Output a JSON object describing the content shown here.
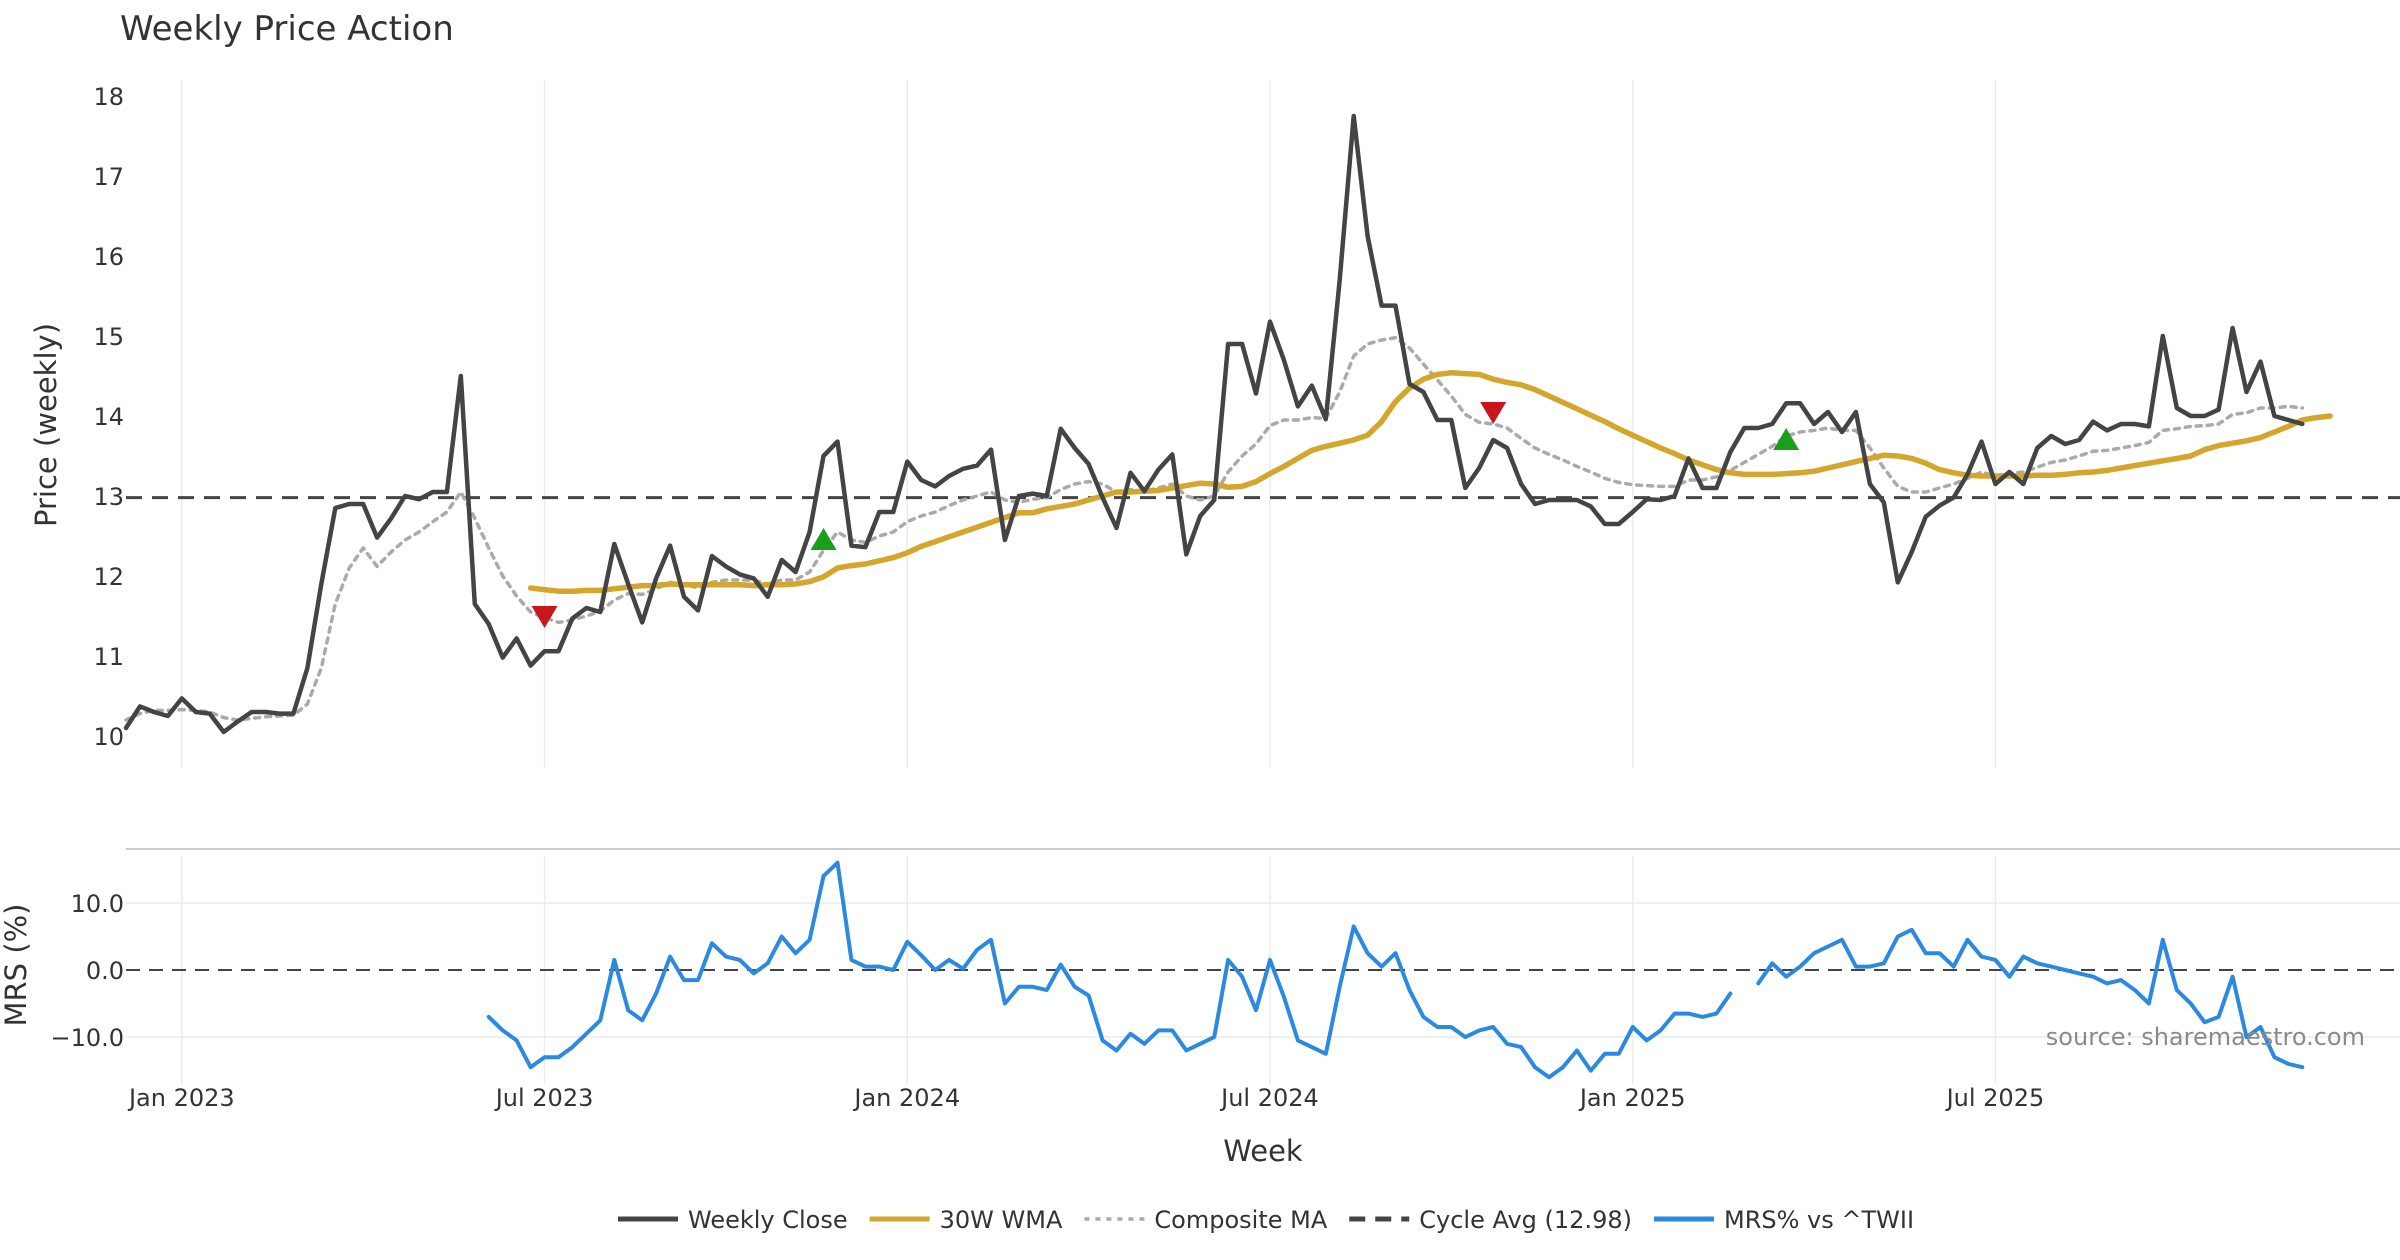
{
  "chart_data": {
    "type": "line",
    "title": "Weekly Price Action",
    "xlabel": "Week",
    "source_text": "source: sharemaestro.com",
    "x_ticks": [
      "Jan 2023",
      "Jul 2023",
      "Jan 2024",
      "Jul 2024",
      "Jan 2025",
      "Jul 2025"
    ],
    "x_tick_weeks": [
      4,
      30,
      56,
      82,
      108,
      134
    ],
    "price_panel": {
      "ylabel": "Price (weekly)",
      "ylim": [
        9.6,
        18.2
      ],
      "y_ticks": [
        10,
        11,
        12,
        13,
        14,
        15,
        16,
        17,
        18
      ]
    },
    "mrs_panel": {
      "ylabel": "MRS (%)",
      "ylim": [
        -17,
        17
      ],
      "y_ticks": [
        10,
        0,
        -10
      ],
      "y_tick_labels": [
        "10.0",
        "0.0",
        "−10.0"
      ]
    },
    "cycle_average": 12.98,
    "series": [
      {
        "name": "Weekly Close",
        "color": "#444444",
        "style": "solid",
        "panel": "price",
        "start_week": 0,
        "values": [
          10.1,
          10.37,
          10.3,
          10.25,
          10.47,
          10.3,
          10.28,
          10.05,
          10.18,
          10.3,
          10.3,
          10.28,
          10.28,
          10.85,
          11.9,
          12.85,
          12.9,
          12.9,
          12.48,
          12.72,
          13.0,
          12.96,
          13.05,
          13.05,
          14.5,
          11.65,
          11.4,
          10.98,
          11.22,
          10.88,
          11.06,
          11.06,
          11.47,
          11.6,
          11.55,
          12.4,
          11.9,
          11.42,
          11.97,
          12.38,
          11.74,
          11.57,
          12.25,
          12.12,
          12.02,
          11.97,
          11.74,
          12.2,
          12.05,
          12.55,
          13.5,
          13.68,
          12.38,
          12.36,
          12.8,
          12.8,
          13.43,
          13.2,
          13.12,
          13.25,
          13.34,
          13.38,
          13.58,
          12.45,
          13.0,
          13.03,
          13.0,
          13.84,
          13.6,
          13.4,
          12.98,
          12.6,
          13.29,
          13.06,
          13.33,
          13.52,
          12.27,
          12.75,
          12.95,
          14.9,
          14.9,
          14.28,
          15.18,
          14.7,
          14.12,
          14.38,
          13.96,
          15.7,
          17.75,
          16.25,
          15.38,
          15.38,
          14.4,
          14.3,
          13.95,
          13.95,
          13.1,
          13.35,
          13.7,
          13.6,
          13.15,
          12.9,
          12.95,
          12.95,
          12.95,
          12.87,
          12.65,
          12.65,
          12.8,
          12.96,
          12.95,
          13.0,
          13.47,
          13.1,
          13.1,
          13.55,
          13.85,
          13.85,
          13.9,
          14.16,
          14.16,
          13.9,
          14.05,
          13.8,
          14.05,
          13.15,
          12.92,
          11.92,
          12.3,
          12.74,
          12.88,
          12.98,
          13.27,
          13.68,
          13.15,
          13.3,
          13.15,
          13.6,
          13.75,
          13.65,
          13.7,
          13.93,
          13.82,
          13.9,
          13.9,
          13.87,
          15.0,
          14.1,
          14.0,
          14.0,
          14.08,
          15.1,
          14.3,
          14.68,
          14.0,
          13.95,
          13.9
        ]
      },
      {
        "name": "30W WMA",
        "color": "#d4a72c",
        "style": "solid",
        "panel": "price",
        "start_week": 29,
        "values": [
          11.85,
          11.83,
          11.81,
          11.81,
          11.82,
          11.82,
          11.84,
          11.86,
          11.88,
          11.88,
          11.9,
          11.89,
          11.89,
          11.89,
          11.89,
          11.89,
          11.88,
          11.89,
          11.89,
          11.9,
          11.93,
          11.99,
          12.1,
          12.13,
          12.15,
          12.19,
          12.23,
          12.29,
          12.37,
          12.43,
          12.49,
          12.55,
          12.61,
          12.67,
          12.73,
          12.79,
          12.79,
          12.84,
          12.87,
          12.9,
          12.95,
          13.0,
          13.05,
          13.05,
          13.06,
          13.07,
          13.1,
          13.13,
          13.16,
          13.15,
          13.11,
          13.12,
          13.18,
          13.28,
          13.37,
          13.47,
          13.57,
          13.62,
          13.66,
          13.7,
          13.76,
          13.93,
          14.18,
          14.35,
          14.46,
          14.52,
          14.54,
          14.53,
          14.52,
          14.46,
          14.42,
          14.39,
          14.33,
          14.25,
          14.17,
          14.09,
          14.01,
          13.93,
          13.84,
          13.76,
          13.68,
          13.6,
          13.53,
          13.45,
          13.39,
          13.33,
          13.29,
          13.27,
          13.27,
          13.27,
          13.28,
          13.29,
          13.31,
          13.35,
          13.39,
          13.43,
          13.47,
          13.51,
          13.5,
          13.47,
          13.41,
          13.33,
          13.29,
          13.26,
          13.25,
          13.25,
          13.25,
          13.25,
          13.26,
          13.26,
          13.27,
          13.29,
          13.3,
          13.32,
          13.35,
          13.38,
          13.41,
          13.44,
          13.47,
          13.5,
          13.58,
          13.63,
          13.66,
          13.69,
          13.73,
          13.8,
          13.87,
          13.95,
          13.98,
          14.0
        ]
      },
      {
        "name": "Composite MA",
        "color": "#aaaaaa",
        "style": "dotted",
        "panel": "price",
        "start_week": 0,
        "values": [
          10.2,
          10.28,
          10.32,
          10.32,
          10.33,
          10.32,
          10.3,
          10.23,
          10.2,
          10.22,
          10.24,
          10.25,
          10.26,
          10.4,
          10.85,
          11.65,
          12.1,
          12.35,
          12.12,
          12.3,
          12.45,
          12.55,
          12.68,
          12.8,
          13.05,
          12.72,
          12.35,
          12.0,
          11.75,
          11.55,
          11.48,
          11.42,
          11.45,
          11.5,
          11.56,
          11.7,
          11.78,
          11.77,
          11.84,
          11.92,
          11.9,
          11.85,
          11.92,
          11.95,
          11.95,
          11.95,
          11.9,
          11.95,
          11.95,
          12.05,
          12.32,
          12.55,
          12.45,
          12.42,
          12.5,
          12.55,
          12.68,
          12.75,
          12.8,
          12.88,
          12.95,
          13.0,
          13.05,
          12.95,
          12.92,
          12.96,
          12.98,
          13.08,
          13.15,
          13.18,
          13.15,
          13.05,
          13.08,
          13.06,
          13.1,
          13.15,
          13.0,
          12.95,
          13.0,
          13.3,
          13.5,
          13.65,
          13.88,
          13.95,
          13.95,
          13.98,
          13.97,
          14.3,
          14.75,
          14.9,
          14.95,
          14.98,
          14.85,
          14.65,
          14.45,
          14.25,
          14.02,
          13.92,
          13.9,
          13.85,
          13.72,
          13.6,
          13.52,
          13.45,
          13.37,
          13.3,
          13.22,
          13.17,
          13.14,
          13.13,
          13.12,
          13.12,
          13.2,
          13.2,
          13.24,
          13.32,
          13.42,
          13.52,
          13.62,
          13.75,
          13.8,
          13.82,
          13.85,
          13.82,
          13.82,
          13.6,
          13.35,
          13.12,
          13.05,
          13.05,
          13.1,
          13.15,
          13.22,
          13.3,
          13.25,
          13.28,
          13.3,
          13.36,
          13.42,
          13.45,
          13.5,
          13.56,
          13.57,
          13.6,
          13.63,
          13.67,
          13.82,
          13.84,
          13.87,
          13.88,
          13.9,
          14.02,
          14.04,
          14.1,
          14.1,
          14.12,
          14.1
        ]
      },
      {
        "name": "Cycle Avg (12.98)",
        "color": "#444444",
        "style": "dashed",
        "panel": "price",
        "constant": 12.98
      },
      {
        "name": "MRS% vs ^TWII",
        "color": "#2b8ae0",
        "style": "solid",
        "panel": "mrs",
        "segments": [
          {
            "start_week": 26,
            "values": [
              -7,
              -9,
              -10.5,
              -14.5,
              -13,
              -13,
              -11.5,
              -9.5,
              -7.5,
              1.5,
              -6,
              -7.5,
              -3.5,
              2,
              -1.5,
              -1.5,
              4,
              2,
              1.5,
              -0.5,
              1,
              5,
              2.5,
              4.5,
              14,
              16,
              1.5,
              0.5,
              0.5,
              0,
              4.2,
              2.2,
              0,
              1.5,
              0.2,
              3,
              4.5,
              -5,
              -2.5,
              -2.5,
              -3,
              0.8,
              -2.5,
              -3.8,
              -10.5,
              -12,
              -9.5,
              -11,
              -9,
              -9,
              -12,
              -11,
              -10,
              1.5,
              -1,
              -6,
              1.5,
              -4,
              -10.5,
              -11.5,
              -12.5,
              -2.5,
              6.5,
              2.5,
              0.5,
              2.5,
              -3,
              -7,
              -8.5,
              -8.5,
              -10,
              -9,
              -8.5,
              -11,
              -11.5,
              -14.5,
              -16,
              -14.5,
              -12,
              -15,
              -12.5,
              -12.5,
              -8.5,
              -10.5,
              -9,
              -6.5,
              -6.5,
              -7,
              -6.5,
              -3.5
            ]
          },
          {
            "start_week": 117,
            "values": [
              -2,
              1,
              -1,
              0.5,
              2.5,
              3.5,
              4.5,
              0.5,
              0.5,
              1,
              5,
              6,
              2.5,
              2.5,
              0.5,
              4.5,
              2,
              1.5,
              -1,
              2,
              1,
              0.5,
              0,
              -0.5,
              -1,
              -2,
              -1.5,
              -3,
              -5,
              4.5,
              -3,
              -5,
              -7.8,
              -7,
              -1,
              -10,
              -8.5,
              -13,
              -14,
              -14.5
            ]
          }
        ]
      }
    ],
    "signals": [
      {
        "type": "sell",
        "week": 30,
        "value": 11.5,
        "color": "#c8161d"
      },
      {
        "type": "buy",
        "week": 50,
        "value": 12.45,
        "color": "#1b9e1b"
      },
      {
        "type": "sell",
        "week": 98,
        "value": 14.05,
        "color": "#c8161d"
      },
      {
        "type": "buy",
        "week": 119,
        "value": 13.7,
        "color": "#1b9e1b"
      }
    ]
  }
}
